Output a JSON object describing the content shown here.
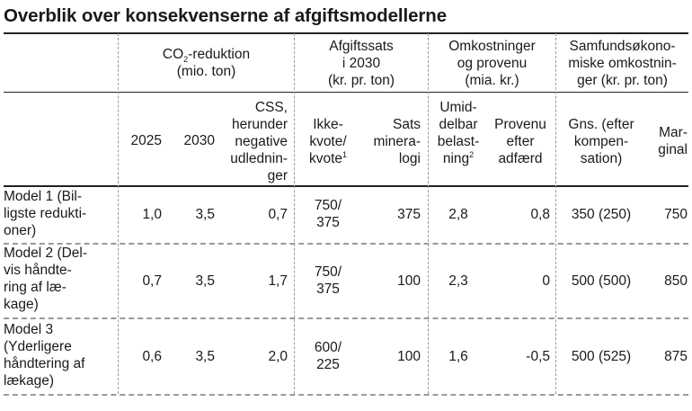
{
  "title": "Overblik over konsekvenserne af afgiftsmodellerne",
  "groups": {
    "co2": {
      "pre": "CO",
      "sub": "2",
      "post": "-reduktion",
      "unit": "(mio. ton)"
    },
    "sats": {
      "line1": "Afgiftssats",
      "line2": "i 2030",
      "unit": "(kr. pr. ton)"
    },
    "omk": {
      "line1": "Omkostninger",
      "line2": "og provenu",
      "unit": "(mia. kr.)"
    },
    "samf": {
      "line1": "Samfundsøkono-",
      "line2": "miske omkostnin-",
      "unit": "ger (kr. pr. ton)"
    }
  },
  "subheaders": {
    "y2025": "2025",
    "y2030": "2030",
    "css": [
      "CSS,",
      "herunder",
      "negative",
      "udlednin-",
      "ger"
    ],
    "ikke": [
      "Ikke-",
      "kvote/",
      "kvote"
    ],
    "ikke_note": "1",
    "mineral": [
      "Sats",
      "minera-",
      "logi"
    ],
    "umid": [
      "Umid-",
      "delbar",
      "belast-",
      "ning"
    ],
    "umid_note": "2",
    "proven": [
      "Provenu",
      "efter",
      "adfærd"
    ],
    "gns": [
      "Gns. (efter",
      "kompen-",
      "sation)"
    ],
    "marg": [
      "Mar-",
      "ginal"
    ]
  },
  "rows": [
    {
      "label": [
        "Model 1 (Bil-",
        "ligste redukti-",
        "oner)"
      ],
      "v2025": "1,0",
      "v2030": "3,5",
      "css": "0,7",
      "ikke": [
        "750/",
        "375"
      ],
      "mineral": "375",
      "umid": "2,8",
      "proven": "0,8",
      "gns": "350 (250)",
      "marg": "750"
    },
    {
      "label": [
        "Model 2 (Del-",
        "vis håndte-",
        "ring af læ-",
        "kage)"
      ],
      "v2025": "0,7",
      "v2030": "3,5",
      "css": "1,7",
      "ikke": [
        "750/",
        "375"
      ],
      "mineral": "100",
      "umid": "2,3",
      "proven": "0",
      "gns": "500 (500)",
      "marg": "850"
    },
    {
      "label": [
        "Model 3",
        "(Yderligere",
        "håndtering af",
        "lækage)"
      ],
      "v2025": "0,6",
      "v2030": "3,5",
      "css": "2,0",
      "ikke": [
        "600/",
        "225"
      ],
      "mineral": "100",
      "umid": "1,6",
      "proven": "-0,5",
      "gns": "500 (525)",
      "marg": "875"
    }
  ]
}
